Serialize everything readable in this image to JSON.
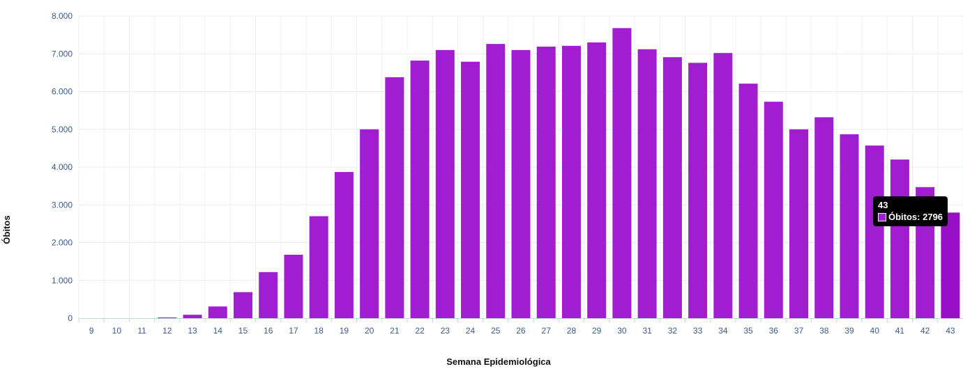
{
  "chart_data": {
    "type": "bar",
    "xlabel": "Semana Epidemiológica",
    "ylabel": "Óbitos",
    "ylim": [
      0,
      8000
    ],
    "yticks": [
      "0",
      "1.000",
      "2.000",
      "3.000",
      "4.000",
      "5.000",
      "6.000",
      "7.000",
      "8.000"
    ],
    "grid": true,
    "categories": [
      "9",
      "10",
      "11",
      "12",
      "13",
      "14",
      "15",
      "16",
      "17",
      "18",
      "19",
      "20",
      "21",
      "22",
      "23",
      "24",
      "25",
      "26",
      "27",
      "28",
      "29",
      "30",
      "31",
      "32",
      "33",
      "34",
      "35",
      "36",
      "37",
      "38",
      "39",
      "40",
      "41",
      "42",
      "43"
    ],
    "series": [
      {
        "name": "Óbitos",
        "color": "#a11ed0",
        "values": [
          0,
          0,
          0,
          20,
          90,
          310,
          690,
          1220,
          1680,
          2700,
          3870,
          5000,
          6380,
          6820,
          7100,
          6790,
          7260,
          7100,
          7190,
          7210,
          7300,
          7680,
          7120,
          6910,
          6760,
          7020,
          6210,
          5730,
          5000,
          5320,
          4870,
          4570,
          4200,
          3470,
          2796
        ]
      }
    ],
    "highlight_color": "#9b0ec9",
    "tooltip": {
      "category": "43",
      "label": "Óbitos: 2796"
    }
  }
}
